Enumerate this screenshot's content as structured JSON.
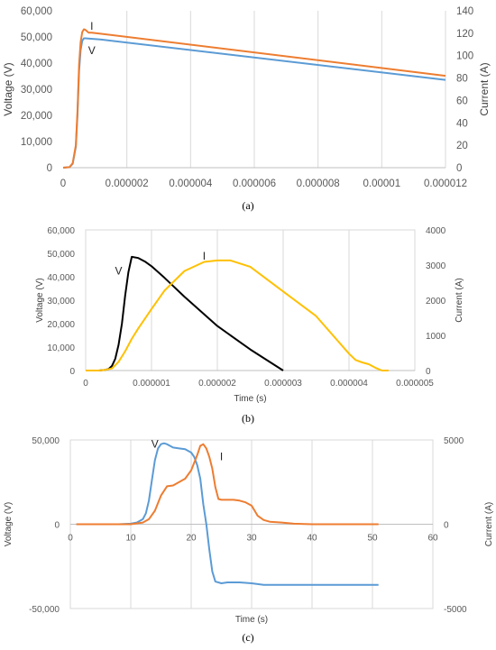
{
  "chart_data": [
    {
      "id": "a",
      "type": "line",
      "caption": "(a)",
      "xlabel": "",
      "ylabel": "Voltage (V)",
      "y2label": "Current (A)",
      "x_ticks": [
        "0",
        "0.000002",
        "0.000004",
        "0.000006",
        "0.000008",
        "0.00001",
        "0.000012"
      ],
      "y_ticks": [
        "0",
        "10,000",
        "20,000",
        "30,000",
        "40,000",
        "50,000",
        "60,000"
      ],
      "y2_ticks": [
        "0",
        "20",
        "40",
        "60",
        "80",
        "100",
        "120",
        "140"
      ],
      "xlim": [
        0,
        1.2e-05
      ],
      "ylim": [
        0,
        60000
      ],
      "y2lim": [
        0,
        140
      ],
      "grid": "vertical",
      "series": [
        {
          "name": "V",
          "axis": "left",
          "color": "#5b9bd5",
          "x": [
            0,
            2e-07,
            3e-07,
            4e-07,
            4.5e-07,
            5e-07,
            5.5e-07,
            6e-07,
            6.5e-07,
            7e-07,
            1.2e-06,
            1.2e-05
          ],
          "y": [
            0,
            200,
            1500,
            8000,
            20000,
            37000,
            45000,
            48500,
            49500,
            49500,
            49000,
            33600
          ]
        },
        {
          "name": "I",
          "axis": "right",
          "color": "#ed7d31",
          "x": [
            0,
            2e-07,
            3e-07,
            4e-07,
            4.5e-07,
            5e-07,
            5.5e-07,
            6e-07,
            6.5e-07,
            7e-07,
            8e-07,
            9e-07,
            1.2e-06,
            1.2e-05
          ],
          "y": [
            0,
            0.5,
            4,
            20,
            50,
            92,
            112,
            121,
            123.5,
            123,
            120.5,
            120.5,
            119.5,
            82
          ]
        }
      ],
      "labels": [
        {
          "text": "I",
          "series": "I",
          "at": [
            9e-07,
            123
          ]
        },
        {
          "text": "V",
          "series": "V",
          "at": [
            9e-07,
            43500
          ]
        }
      ]
    },
    {
      "id": "b",
      "type": "line",
      "caption": "(b)",
      "xlabel": "Time (s)",
      "ylabel": "Voltage (V)",
      "y2label": "Current (A)",
      "x_ticks": [
        "0",
        "0.000001",
        "0.000002",
        "0.000003",
        "0.000004",
        "0.000005"
      ],
      "y_ticks": [
        "0",
        "10,000",
        "20,000",
        "30,000",
        "40,000",
        "50,000",
        "60,000"
      ],
      "y2_ticks": [
        "0",
        "1000",
        "2000",
        "3000",
        "4000"
      ],
      "xlim": [
        0,
        5e-06
      ],
      "ylim": [
        0,
        60000
      ],
      "y2lim": [
        0,
        4000
      ],
      "grid": "vertical",
      "series": [
        {
          "name": "V",
          "axis": "left",
          "color": "#000000",
          "x": [
            0,
            2e-07,
            3e-07,
            3.5e-07,
            4e-07,
            4.5e-07,
            5e-07,
            5.5e-07,
            6e-07,
            6.5e-07,
            7e-07,
            8e-07,
            9e-07,
            1e-06,
            1.2e-06,
            1.5e-06,
            2e-06,
            2.5e-06,
            3e-06
          ],
          "y": [
            0,
            0,
            300,
            700,
            2000,
            5000,
            11000,
            20000,
            32000,
            42000,
            48500,
            48000,
            46500,
            44500,
            39500,
            31500,
            19000,
            9000,
            0
          ]
        },
        {
          "name": "I",
          "axis": "right",
          "color": "#ffc000",
          "x": [
            0,
            2e-07,
            3e-07,
            4e-07,
            5e-07,
            6e-07,
            7e-07,
            8e-07,
            1e-06,
            1.2e-06,
            1.5e-06,
            1.8e-06,
            2e-06,
            2.2e-06,
            2.5e-06,
            3e-06,
            3.5e-06,
            4e-06,
            4.1e-06,
            4.2e-06,
            4.3e-06,
            4.4e-06,
            4.5e-06,
            4.6e-06
          ],
          "y": [
            0,
            0,
            20,
            60,
            250,
            550,
            900,
            1200,
            1750,
            2280,
            2830,
            3090,
            3130,
            3130,
            2950,
            2250,
            1550,
            480,
            300,
            230,
            180,
            80,
            0,
            0
          ]
        }
      ],
      "labels": [
        {
          "text": "V",
          "series": "V",
          "at": [
            5e-07,
            41000
          ]
        },
        {
          "text": "I",
          "series": "I",
          "at": [
            1.8e-06,
            3150
          ]
        }
      ]
    },
    {
      "id": "c",
      "type": "line",
      "caption": "(c)",
      "xlabel": "Time (s)",
      "ylabel": "Voltage (V)",
      "y2label": "Current (A)",
      "x_ticks": [
        "0",
        "10",
        "20",
        "30",
        "40",
        "50",
        "60"
      ],
      "y_ticks": [
        "-50,000",
        "0",
        "50,000"
      ],
      "y2_ticks": [
        "-5000",
        "0",
        "5000"
      ],
      "xlim": [
        0,
        60
      ],
      "ylim": [
        -50000,
        50000
      ],
      "y2lim": [
        -5000,
        5000
      ],
      "grid": "vertical",
      "series": [
        {
          "name": "V",
          "axis": "left",
          "color": "#5b9bd5",
          "x": [
            1,
            8,
            10,
            11,
            12,
            12.5,
            13,
            13.5,
            14,
            14.5,
            15,
            15.5,
            16,
            17,
            18,
            19,
            20,
            20.5,
            21,
            21.5,
            22,
            22.5,
            23,
            23.5,
            24,
            25,
            26,
            28,
            30,
            32,
            35,
            40,
            45,
            51
          ],
          "y": [
            0,
            0,
            300,
            1000,
            3000,
            6500,
            14000,
            26000,
            38000,
            45000,
            47500,
            48000,
            47500,
            45500,
            45000,
            44500,
            42500,
            40000,
            35000,
            27000,
            12000,
            0,
            -15000,
            -28000,
            -34000,
            -35000,
            -34500,
            -34500,
            -35000,
            -36000,
            -36000,
            -36000,
            -36000,
            -36000
          ]
        },
        {
          "name": "I",
          "axis": "right",
          "color": "#ed7d31",
          "x": [
            1,
            10,
            12,
            13,
            14,
            15,
            16,
            17,
            18,
            19,
            20,
            21,
            21.5,
            22,
            22.5,
            23,
            23.5,
            24,
            24.5,
            25,
            26,
            27,
            28,
            29,
            30,
            30.5,
            31,
            32,
            33,
            35,
            37,
            40,
            45,
            51
          ],
          "y": [
            0,
            0,
            100,
            300,
            800,
            1700,
            2250,
            2300,
            2500,
            2700,
            3200,
            4100,
            4650,
            4750,
            4500,
            4000,
            3300,
            2200,
            1500,
            1450,
            1450,
            1450,
            1400,
            1300,
            1100,
            800,
            500,
            250,
            150,
            100,
            30,
            0,
            0,
            0
          ]
        }
      ],
      "labels": [
        {
          "text": "V",
          "series": "V",
          "at": [
            14,
            45500
          ]
        },
        {
          "text": "I",
          "series": "I",
          "at": [
            25,
            3800
          ]
        }
      ]
    }
  ]
}
